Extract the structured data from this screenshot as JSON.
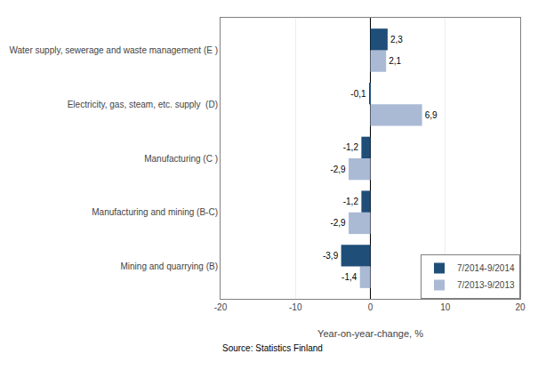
{
  "chart_data": {
    "type": "bar",
    "orientation": "horizontal",
    "categories": [
      "Mining and quarrying (B)",
      "Manufacturing and mining (B-C)",
      "Manufacturing (C )",
      "Electricity, gas, steam, etc. supply  (D)",
      "Water supply, sewerage and waste management (E )"
    ],
    "series": [
      {
        "name": "7/2014-9/2014",
        "color": "#1f4e79",
        "values": [
          -3.9,
          -1.2,
          -1.2,
          -0.1,
          2.3
        ],
        "value_labels": [
          "-3,9",
          "-1,2",
          "-1,2",
          "-0,1",
          "2,3"
        ]
      },
      {
        "name": "7/2013-9/2013",
        "color": "#aab9d4",
        "values": [
          -1.4,
          -2.9,
          -2.9,
          6.9,
          2.1
        ],
        "value_labels": [
          "-1,4",
          "-2,9",
          "-2,9",
          "6,9",
          "2,1"
        ]
      }
    ],
    "x_label": "Year-on-year-change, %",
    "xlim": [
      -20,
      20
    ],
    "xticks": [
      -20,
      -10,
      0,
      10,
      20
    ],
    "grid": true,
    "legend": "lower right",
    "data_labels": true,
    "annotations": [
      "Source: Statistics Finland"
    ]
  }
}
